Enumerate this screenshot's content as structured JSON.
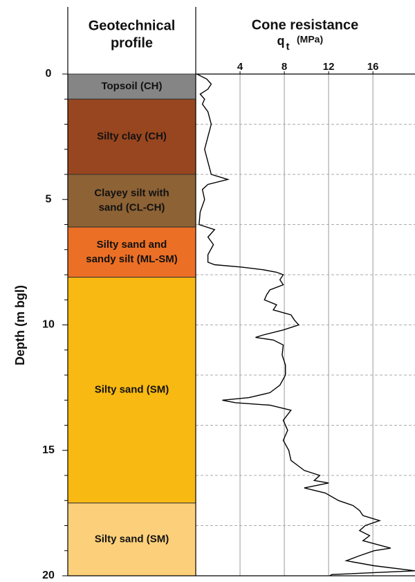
{
  "chart_data": {
    "type": "line",
    "profile_title": [
      "Geotechnical",
      "profile"
    ],
    "title": "Cone resistance",
    "x_label": {
      "symbol": "q",
      "subscript": "t",
      "unit": "(MPa)"
    },
    "y_label": "Depth (m bgl)",
    "ylim": [
      0,
      20
    ],
    "yticks": [
      0,
      5,
      10,
      15,
      20
    ],
    "yminorticks": [
      1,
      2,
      3,
      4,
      6,
      7,
      8,
      9,
      11,
      12,
      13,
      14,
      16,
      17,
      18,
      19
    ],
    "ygrid": [
      2,
      4,
      6,
      8,
      10,
      12,
      14,
      16,
      18
    ],
    "xlim": [
      0,
      19.8
    ],
    "xticks": [
      4,
      8,
      12,
      16
    ],
    "grid": true,
    "layers": [
      {
        "label": [
          "Topsoil (CH)"
        ],
        "top": 0,
        "bottom": 1,
        "color": "#858585"
      },
      {
        "label": [
          "Silty clay (CH)"
        ],
        "top": 1,
        "bottom": 4,
        "color": "#98461f"
      },
      {
        "label": [
          "Clayey silt with",
          "sand (CL-CH)"
        ],
        "top": 4,
        "bottom": 6.1,
        "color": "#8d6235"
      },
      {
        "label": [
          "Silty sand and",
          "sandy silt (ML-SM)"
        ],
        "top": 6.1,
        "bottom": 8.1,
        "color": "#eb6f25"
      },
      {
        "label": [
          "Silty sand (SM)"
        ],
        "top": 8.1,
        "bottom": 17.1,
        "color": "#f8b912"
      },
      {
        "label": [
          "Silty sand (SM)"
        ],
        "top": 17.1,
        "bottom": 20,
        "color": "#fcd07a"
      }
    ],
    "series": [
      {
        "color": "#000000",
        "depth": [
          0,
          0.2,
          0.4,
          0.6,
          0.8,
          1.0,
          1.2,
          1.5,
          2.0,
          2.5,
          3.0,
          3.5,
          4.0,
          4.2,
          4.4,
          4.6,
          5.0,
          5.5,
          6.0,
          6.2,
          6.5,
          6.8,
          7.2,
          7.5,
          7.6,
          7.7,
          7.8,
          7.9,
          8.0,
          8.2,
          8.4,
          8.6,
          8.8,
          9.0,
          9.2,
          9.4,
          9.6,
          9.8,
          10.0,
          10.2,
          10.4,
          10.5,
          10.6,
          10.8,
          11.2,
          11.6,
          12.0,
          12.4,
          12.7,
          12.9,
          13.0,
          13.1,
          13.2,
          13.4,
          13.8,
          14.2,
          14.6,
          15.0,
          15.4,
          15.6,
          15.8,
          16.0,
          16.2,
          16.3,
          16.5,
          16.7,
          17.0,
          17.2,
          17.4,
          17.6,
          17.8,
          18.0,
          18.2,
          18.4,
          18.6,
          18.9,
          19.0,
          19.2,
          19.4,
          19.6,
          19.8,
          19.95,
          20.0
        ],
        "qt": [
          0.1,
          1.0,
          1.4,
          1.1,
          0.4,
          0.8,
          0.6,
          1.1,
          1.4,
          1.1,
          0.8,
          1.1,
          1.4,
          2.9,
          1.1,
          0.6,
          0.8,
          0.4,
          0.3,
          1.7,
          1.1,
          1.6,
          1.1,
          1.1,
          1.7,
          4.2,
          6.1,
          7.3,
          7.9,
          7.6,
          7.9,
          6.7,
          6.4,
          6.2,
          7.3,
          7.0,
          8.6,
          8.9,
          9.3,
          7.9,
          6.1,
          5.4,
          7.0,
          7.9,
          7.8,
          8.1,
          8.1,
          7.6,
          6.7,
          4.8,
          2.4,
          3.6,
          6.7,
          8.6,
          7.9,
          8.3,
          7.9,
          8.4,
          8.6,
          9.2,
          9.8,
          11.2,
          10.7,
          12.0,
          9.8,
          11.7,
          12.9,
          14.2,
          14.8,
          15.1,
          16.6,
          15.3,
          14.8,
          15.7,
          15.1,
          17.6,
          16.1,
          14.8,
          13.6,
          16.1,
          19.8,
          12.3,
          12.1
        ]
      }
    ]
  }
}
